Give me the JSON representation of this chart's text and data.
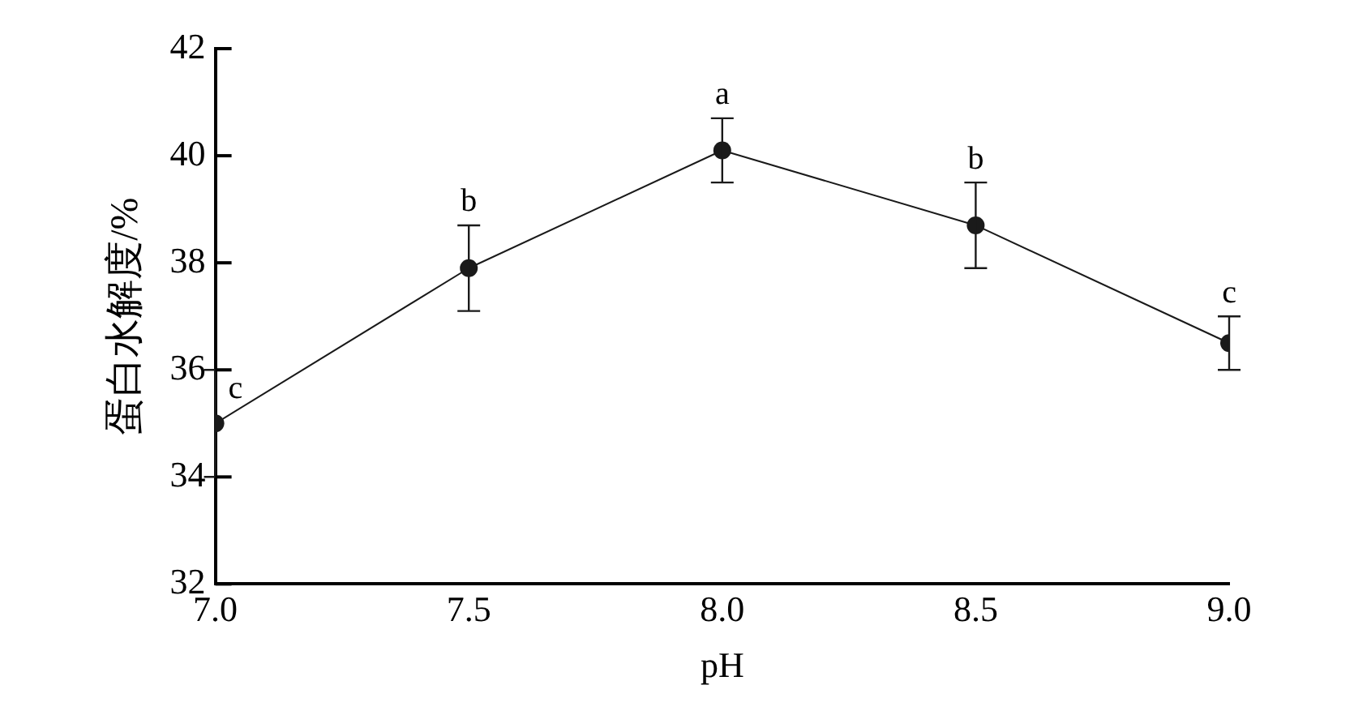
{
  "chart_data": {
    "type": "line",
    "xlabel": "pH",
    "ylabel": "蛋白水解度/%",
    "x": [
      7.0,
      7.5,
      8.0,
      8.5,
      9.0
    ],
    "series": [
      {
        "color": "#1a1a1a",
        "values": [
          35.0,
          37.9,
          40.1,
          38.7,
          36.5
        ],
        "errors": [
          1.0,
          0.8,
          0.6,
          0.8,
          0.5
        ]
      }
    ],
    "xlim": [
      7.0,
      9.0
    ],
    "xticks": [
      {
        "value": 7,
        "label": "7.0"
      },
      {
        "value": 7.5,
        "label": "7.5"
      },
      {
        "value": 8,
        "label": "8.0"
      },
      {
        "value": 8.5,
        "label": "8.5"
      },
      {
        "value": 9,
        "label": "9.0"
      }
    ],
    "ylim": [
      32,
      42
    ],
    "yticks": [
      32,
      34,
      36,
      38,
      40,
      42
    ],
    "annotations": [
      {
        "text": "c",
        "x": 7.0,
        "y": 35.0
      },
      {
        "text": "b",
        "x": 7.5,
        "y": 37.9
      },
      {
        "text": "a",
        "x": 8.0,
        "y": 40.1
      },
      {
        "text": "b",
        "x": 8.5,
        "y": 38.7
      },
      {
        "text": "c",
        "x": 9.0,
        "y": 36.5
      }
    ],
    "grid": false,
    "legend": false,
    "marker": "circle",
    "line_style": "solid"
  }
}
